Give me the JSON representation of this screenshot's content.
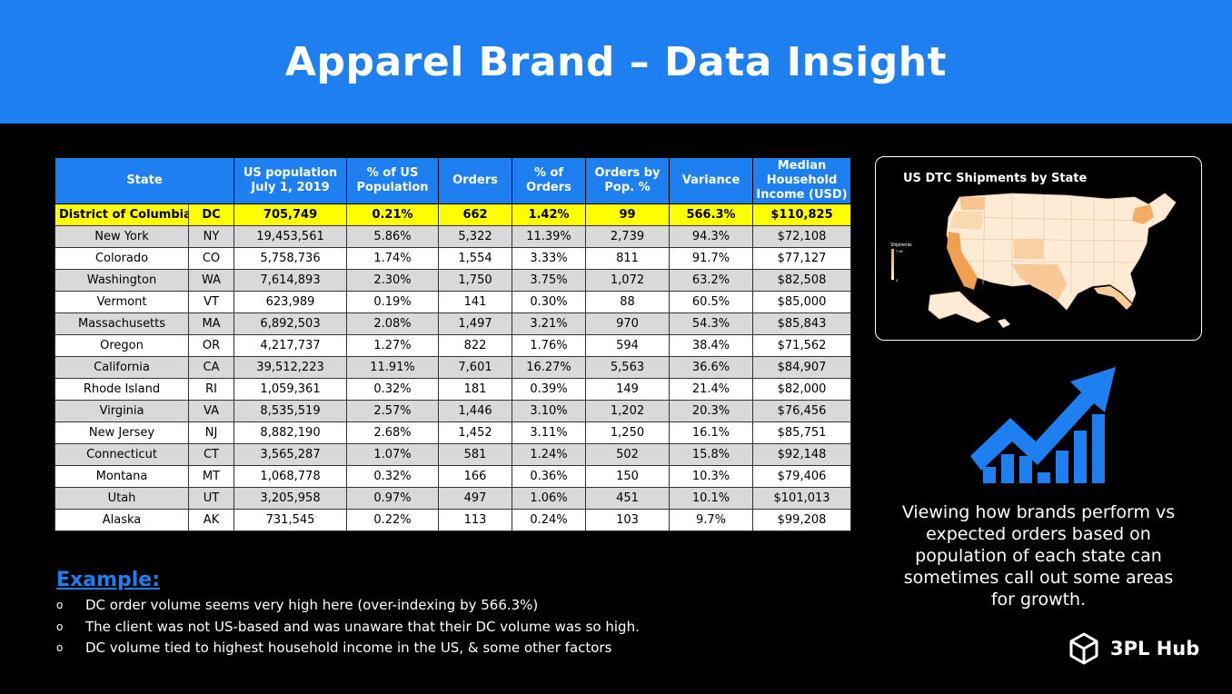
{
  "header": {
    "title": "Apparel Brand – Data Insight"
  },
  "table": {
    "columns": [
      "State",
      "",
      "US population July 1, 2019",
      "% of US Population",
      "Orders",
      "% of Orders",
      "Orders by Pop. %",
      "Variance",
      "Median Household Income (USD)"
    ],
    "rows": [
      [
        "District of Columbia",
        "DC",
        "705,749",
        "0.21%",
        "662",
        "1.42%",
        "99",
        "566.3%",
        "$110,825"
      ],
      [
        "New York",
        "NY",
        "19,453,561",
        "5.86%",
        "5,322",
        "11.39%",
        "2,739",
        "94.3%",
        "$72,108"
      ],
      [
        "Colorado",
        "CO",
        "5,758,736",
        "1.74%",
        "1,554",
        "3.33%",
        "811",
        "91.7%",
        "$77,127"
      ],
      [
        "Washington",
        "WA",
        "7,614,893",
        "2.30%",
        "1,750",
        "3.75%",
        "1,072",
        "63.2%",
        "$82,508"
      ],
      [
        "Vermont",
        "VT",
        "623,989",
        "0.19%",
        "141",
        "0.30%",
        "88",
        "60.5%",
        "$85,000"
      ],
      [
        "Massachusetts",
        "MA",
        "6,892,503",
        "2.08%",
        "1,497",
        "3.21%",
        "970",
        "54.3%",
        "$85,843"
      ],
      [
        "Oregon",
        "OR",
        "4,217,737",
        "1.27%",
        "822",
        "1.76%",
        "594",
        "38.4%",
        "$71,562"
      ],
      [
        "California",
        "CA",
        "39,512,223",
        "11.91%",
        "7,601",
        "16.27%",
        "5,563",
        "36.6%",
        "$84,907"
      ],
      [
        "Rhode Island",
        "RI",
        "1,059,361",
        "0.32%",
        "181",
        "0.39%",
        "149",
        "21.4%",
        "$82,000"
      ],
      [
        "Virginia",
        "VA",
        "8,535,519",
        "2.57%",
        "1,446",
        "3.10%",
        "1,202",
        "20.3%",
        "$76,456"
      ],
      [
        "New Jersey",
        "NJ",
        "8,882,190",
        "2.68%",
        "1,452",
        "3.11%",
        "1,250",
        "16.1%",
        "$85,751"
      ],
      [
        "Connecticut",
        "CT",
        "3,565,287",
        "1.07%",
        "581",
        "1.24%",
        "502",
        "15.8%",
        "$92,148"
      ],
      [
        "Montana",
        "MT",
        "1,068,778",
        "0.32%",
        "166",
        "0.36%",
        "150",
        "10.3%",
        "$79,406"
      ],
      [
        "Utah",
        "UT",
        "3,205,958",
        "0.97%",
        "497",
        "1.06%",
        "451",
        "10.1%",
        "$101,013"
      ],
      [
        "Alaska",
        "AK",
        "731,545",
        "0.22%",
        "113",
        "0.24%",
        "103",
        "9.7%",
        "$99,208"
      ]
    ]
  },
  "example": {
    "title": "Example:",
    "bullet_glyph": "o",
    "items": [
      "DC order volume seems very high here (over-indexing by 566.3%)",
      "The client was not US-based and was unaware that their DC volume was so high.",
      "DC volume tied to highest household income in the US, & some other factors"
    ]
  },
  "map": {
    "title": "US DTC Shipments by State",
    "legend_title": "Shipments",
    "legend_max": "7.6K",
    "legend_min": "0"
  },
  "caption": "Viewing how brands perform vs expected orders based on population of each state can sometimes call out some areas for growth.",
  "brand": {
    "name": "3PL Hub"
  },
  "colors": {
    "accent": "#1e7ff0",
    "highlight": "#ffff00",
    "row_shade": "#d9d9d9",
    "map_high": "#f0a050",
    "map_low": "#fdebd6"
  },
  "icons": [
    "growth-chart-icon",
    "cube-logo-icon"
  ]
}
